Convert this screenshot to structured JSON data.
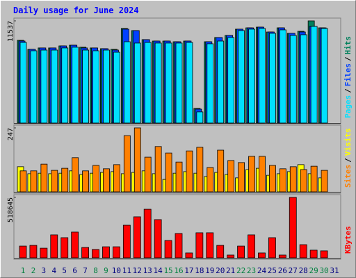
{
  "chart_data": [
    {
      "type": "bar",
      "title": "Daily usage for June 2024",
      "ylim": [
        0,
        11537
      ],
      "yticks": [
        11537
      ],
      "legend_separator": "/",
      "series": [
        {
          "name": "Hits",
          "color": "#00805C",
          "values": [
            9340,
            8320,
            8480,
            8480,
            8710,
            8790,
            8560,
            8480,
            8400,
            8320,
            10680,
            10440,
            9420,
            9260,
            9260,
            9180,
            9260,
            1650,
            9180,
            9660,
            9890,
            10600,
            10750,
            10830,
            10280,
            10750,
            10130,
            10360,
            11537,
            10750,
            null
          ]
        },
        {
          "name": "Files",
          "color": "#0040FF",
          "values": [
            9260,
            8320,
            8480,
            8480,
            8710,
            8790,
            8480,
            8480,
            8400,
            8240,
            10600,
            10440,
            9420,
            9260,
            9260,
            9180,
            9260,
            1570,
            9180,
            9660,
            9890,
            10600,
            10750,
            10830,
            10280,
            10750,
            10130,
            10280,
            10910,
            10750,
            null
          ]
        },
        {
          "name": "Pages",
          "color": "#00E0FF",
          "values": [
            9100,
            8160,
            8240,
            8240,
            8480,
            8560,
            8240,
            8160,
            8240,
            8000,
            9180,
            9030,
            9100,
            9030,
            9030,
            9030,
            9100,
            1260,
            8950,
            9260,
            9660,
            10440,
            10600,
            10680,
            10130,
            10520,
            9890,
            9970,
            10910,
            10680,
            null
          ]
        }
      ]
    },
    {
      "type": "bar",
      "ylim": [
        0,
        247
      ],
      "yticks": [
        247
      ],
      "legend_separator": "/",
      "series": [
        {
          "name": "Visits",
          "color": "#FFFF00",
          "values": [
            97,
            70,
            72,
            70,
            72,
            81,
            67,
            72,
            75,
            78,
            70,
            75,
            81,
            70,
            48,
            72,
            78,
            72,
            59,
            75,
            67,
            54,
            86,
            91,
            64,
            70,
            78,
            105,
            70,
            54,
            null
          ]
        },
        {
          "name": "Sites",
          "color": "#FF8000",
          "values": [
            81,
            81,
            107,
            83,
            91,
            132,
            81,
            102,
            89,
            105,
            217,
            247,
            134,
            175,
            150,
            115,
            158,
            172,
            94,
            161,
            121,
            113,
            137,
            137,
            102,
            89,
            97,
            86,
            99,
            83,
            null
          ]
        }
      ]
    },
    {
      "type": "bar",
      "ylim": [
        0,
        518645
      ],
      "yticks": [
        518645
      ],
      "categories": [
        "1",
        "2",
        "3",
        "4",
        "5",
        "6",
        "7",
        "8",
        "9",
        "10",
        "11",
        "12",
        "13",
        "14",
        "15",
        "16",
        "17",
        "18",
        "19",
        "20",
        "21",
        "22",
        "23",
        "24",
        "25",
        "26",
        "27",
        "28",
        "29",
        "30",
        "31"
      ],
      "category_colors": [
        "#008040",
        "#008040",
        "#000080",
        "#000080",
        "#000080",
        "#000080",
        "#000080",
        "#008040",
        "#008040",
        "#000080",
        "#000080",
        "#000080",
        "#000080",
        "#000080",
        "#008040",
        "#008040",
        "#000080",
        "#000080",
        "#000080",
        "#000080",
        "#000080",
        "#008040",
        "#008040",
        "#000080",
        "#000080",
        "#000080",
        "#000080",
        "#000080",
        "#008040",
        "#008040",
        "#000080"
      ],
      "series": [
        {
          "name": "KBytes",
          "color": "#FF0000",
          "values": [
            101000,
            107000,
            83000,
            197000,
            173000,
            221000,
            89000,
            72000,
            95000,
            95000,
            280000,
            352000,
            417000,
            328000,
            149000,
            209000,
            42000,
            215000,
            215000,
            107000,
            24000,
            101000,
            197000,
            42000,
            173000,
            24000,
            518645,
            113000,
            66000,
            60000,
            null
          ]
        }
      ]
    }
  ]
}
